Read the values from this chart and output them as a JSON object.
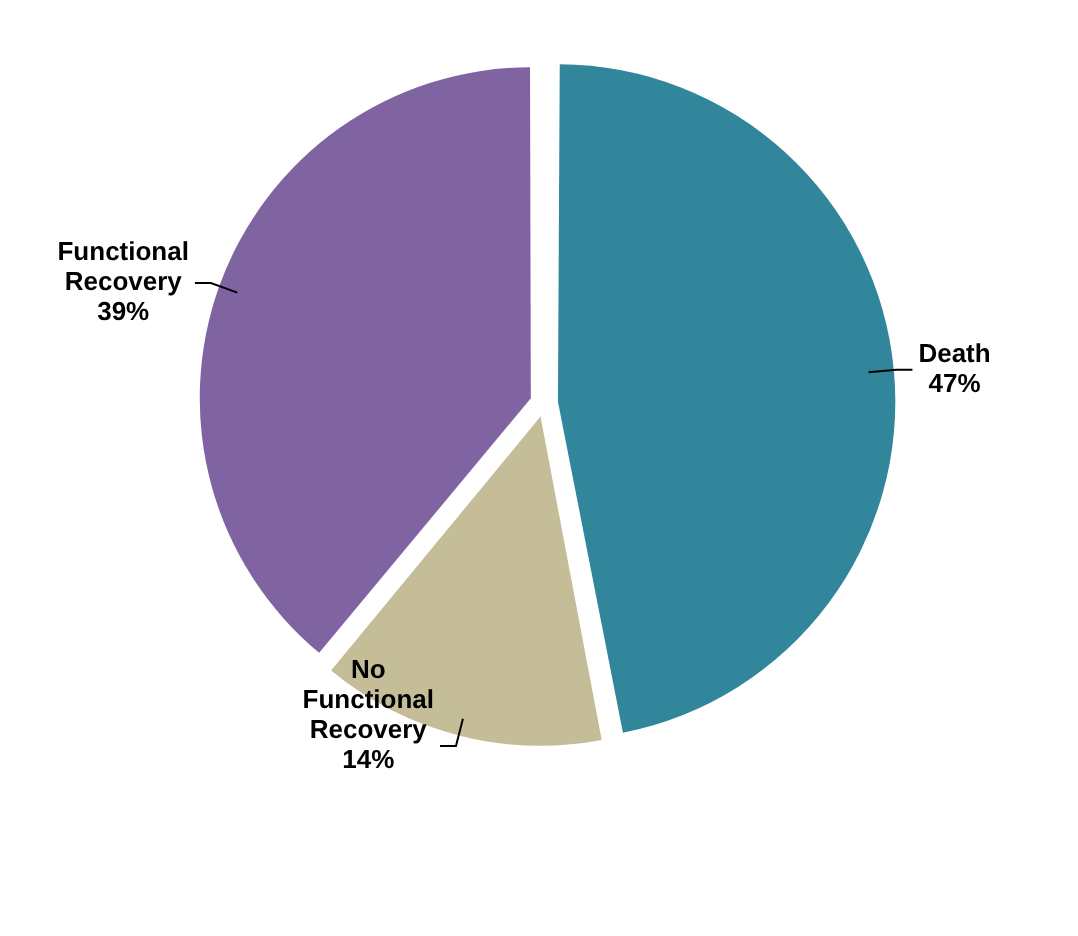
{
  "chart_data": {
    "type": "pie",
    "categories": [
      "Death",
      "No Functional Recovery",
      "Functional Recovery"
    ],
    "values": [
      47,
      14,
      39
    ],
    "value_labels": [
      "47%",
      "14%",
      "39%"
    ],
    "colors": [
      "#31869b",
      "#c4bd97",
      "#8064a2"
    ],
    "legend": false
  }
}
